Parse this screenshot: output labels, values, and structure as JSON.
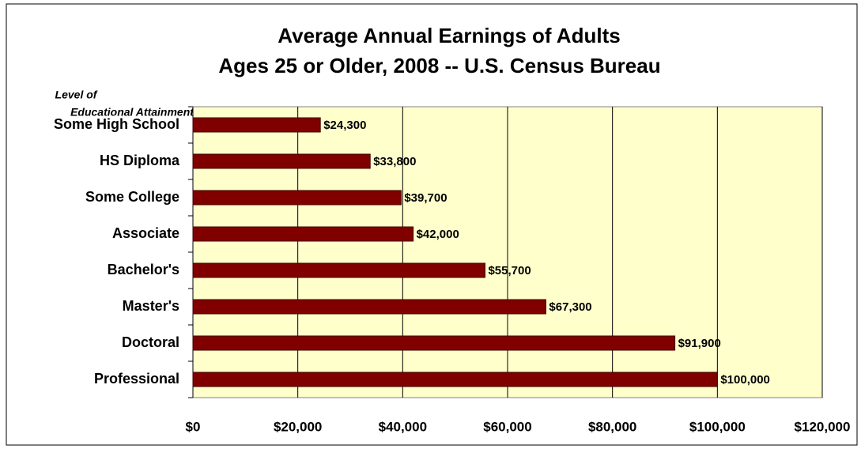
{
  "chart_data": {
    "type": "barh",
    "title": [
      "Average Annual Earnings of Adults",
      "Ages 25 or Older, 2008 -- U.S. Census Bureau"
    ],
    "ylabel": [
      "Level of",
      "Educational Attainment"
    ],
    "categories": [
      "Some High School",
      "HS Diploma",
      "Some College",
      "Associate",
      "Bachelor's",
      "Master's",
      "Doctoral",
      "Professional"
    ],
    "values": [
      24300,
      33800,
      39700,
      42000,
      55700,
      67300,
      91900,
      100000
    ],
    "value_labels": [
      "$24,300",
      "$33,800",
      "$39,700",
      "$42,000",
      "$55,700",
      "$67,300",
      "$91,900",
      "$100,000"
    ],
    "color": "#800000",
    "plot_background": "#ffffcc",
    "xlim": [
      0,
      120000
    ],
    "xticks": [
      {
        "value": 0,
        "label": "$0"
      },
      {
        "value": 20000,
        "label": "$20,000"
      },
      {
        "value": 40000,
        "label": "$40,000"
      },
      {
        "value": 60000,
        "label": "$60,000"
      },
      {
        "value": 80000,
        "label": "$80,000"
      },
      {
        "value": 100000,
        "label": "$100,000"
      },
      {
        "value": 120000,
        "label": "$120,000"
      }
    ],
    "grid": true
  }
}
